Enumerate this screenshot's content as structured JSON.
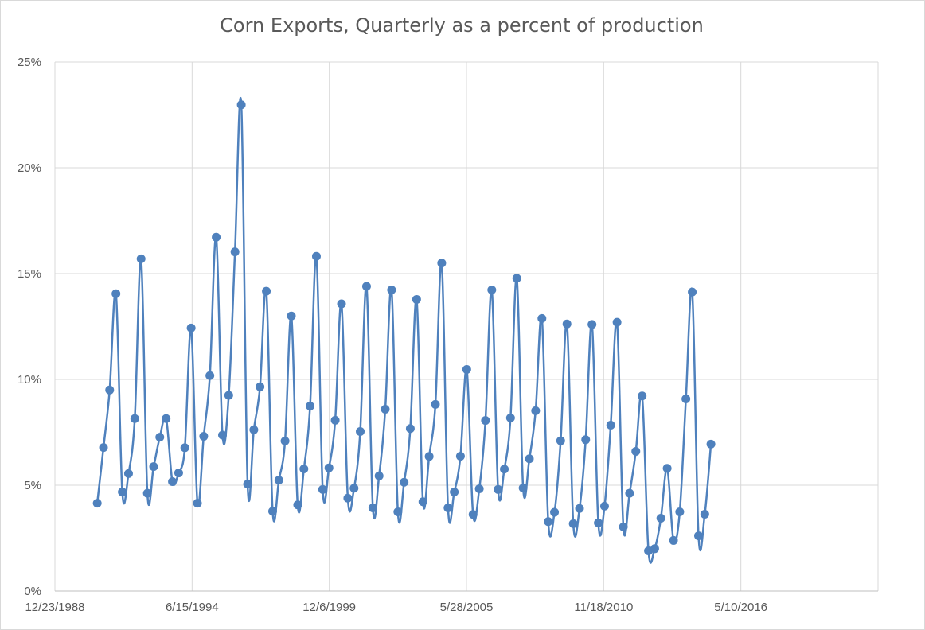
{
  "chart_data": {
    "type": "line",
    "title": "Corn Exports, Quarterly as a percent of production",
    "xlabel": "",
    "ylabel": "",
    "x_axis": {
      "type": "date",
      "min": "1988-12-23",
      "max": "2021-10-31",
      "tick_labels": [
        "12/23/1988",
        "6/15/1994",
        "12/6/1999",
        "5/28/2005",
        "11/18/2010",
        "5/10/2016"
      ],
      "tick_dates": [
        "1988-12-23",
        "1994-06-15",
        "1999-12-06",
        "2005-05-28",
        "2010-11-18",
        "2016-05-10",
        "2021-10-31"
      ]
    },
    "y_axis": {
      "min": 0,
      "max": 25,
      "unit": "%",
      "tick_labels": [
        "0%",
        "5%",
        "10%",
        "15%",
        "20%",
        "25%"
      ],
      "tick_values": [
        0,
        5,
        10,
        15,
        20,
        25
      ]
    },
    "grid": true,
    "legend": "none",
    "line_color": "#4f81bd",
    "series": [
      {
        "name": "",
        "x": [
          "1990-09-01",
          "1990-12-01",
          "1991-03-01",
          "1991-06-01",
          "1991-09-01",
          "1991-12-01",
          "1992-03-01",
          "1992-06-01",
          "1992-09-01",
          "1992-12-01",
          "1993-03-01",
          "1993-06-01",
          "1993-09-01",
          "1993-12-01",
          "1994-03-01",
          "1994-06-01",
          "1994-09-01",
          "1994-12-01",
          "1995-03-01",
          "1995-06-01",
          "1995-09-01",
          "1995-12-01",
          "1996-03-01",
          "1996-06-01",
          "1996-09-01",
          "1996-12-01",
          "1997-03-01",
          "1997-06-01",
          "1997-09-01",
          "1997-12-01",
          "1998-03-01",
          "1998-06-01",
          "1998-09-01",
          "1998-12-01",
          "1999-03-01",
          "1999-06-01",
          "1999-09-01",
          "1999-12-01",
          "2000-03-01",
          "2000-06-01",
          "2000-09-01",
          "2000-12-01",
          "2001-03-01",
          "2001-06-01",
          "2001-09-01",
          "2001-12-01",
          "2002-03-01",
          "2002-06-01",
          "2002-09-01",
          "2002-12-01",
          "2003-03-01",
          "2003-06-01",
          "2003-09-01",
          "2003-12-01",
          "2004-03-01",
          "2004-06-01",
          "2004-09-01",
          "2004-12-01",
          "2005-03-01",
          "2005-06-01",
          "2005-09-01",
          "2005-12-01",
          "2006-03-01",
          "2006-06-01",
          "2006-09-01",
          "2006-12-01",
          "2007-03-01",
          "2007-06-01",
          "2007-09-01",
          "2007-12-01",
          "2008-03-01",
          "2008-06-01",
          "2008-09-01",
          "2008-12-01",
          "2009-03-01",
          "2009-06-01",
          "2009-09-01",
          "2009-12-01",
          "2010-03-01",
          "2010-06-01",
          "2010-09-01",
          "2010-12-01",
          "2011-03-01",
          "2011-06-01",
          "2011-09-01",
          "2011-12-01",
          "2012-03-01",
          "2012-06-01",
          "2012-09-01",
          "2012-12-01",
          "2013-03-01",
          "2013-06-01",
          "2013-09-01",
          "2013-12-01",
          "2014-03-01",
          "2014-06-01",
          "2014-09-01",
          "2014-12-01",
          "2015-03-01"
        ],
        "values": [
          4.15,
          6.78,
          9.5,
          14.05,
          4.68,
          5.55,
          8.15,
          15.7,
          4.62,
          5.88,
          7.27,
          8.15,
          5.17,
          5.58,
          6.77,
          12.43,
          4.15,
          7.31,
          10.18,
          16.72,
          7.37,
          9.25,
          16.03,
          22.98,
          5.05,
          7.62,
          9.65,
          14.17,
          3.77,
          5.24,
          7.09,
          13.0,
          4.07,
          5.77,
          8.74,
          15.82,
          4.8,
          5.82,
          8.07,
          13.57,
          4.39,
          4.86,
          7.54,
          14.4,
          3.93,
          5.44,
          8.59,
          14.23,
          3.74,
          5.14,
          7.68,
          13.78,
          4.22,
          6.36,
          8.82,
          15.5,
          3.93,
          4.68,
          6.37,
          10.47,
          3.62,
          4.83,
          8.06,
          14.23,
          4.8,
          5.76,
          8.18,
          14.78,
          4.87,
          6.25,
          8.52,
          12.88,
          3.28,
          3.72,
          7.1,
          12.62,
          3.18,
          3.9,
          7.15,
          12.6,
          3.22,
          4.01,
          7.84,
          12.7,
          3.03,
          4.62,
          6.6,
          9.22,
          1.9,
          2.0,
          3.44,
          5.8,
          2.39,
          3.74,
          9.08,
          14.13,
          2.61,
          3.63,
          6.94
        ]
      }
    ]
  }
}
